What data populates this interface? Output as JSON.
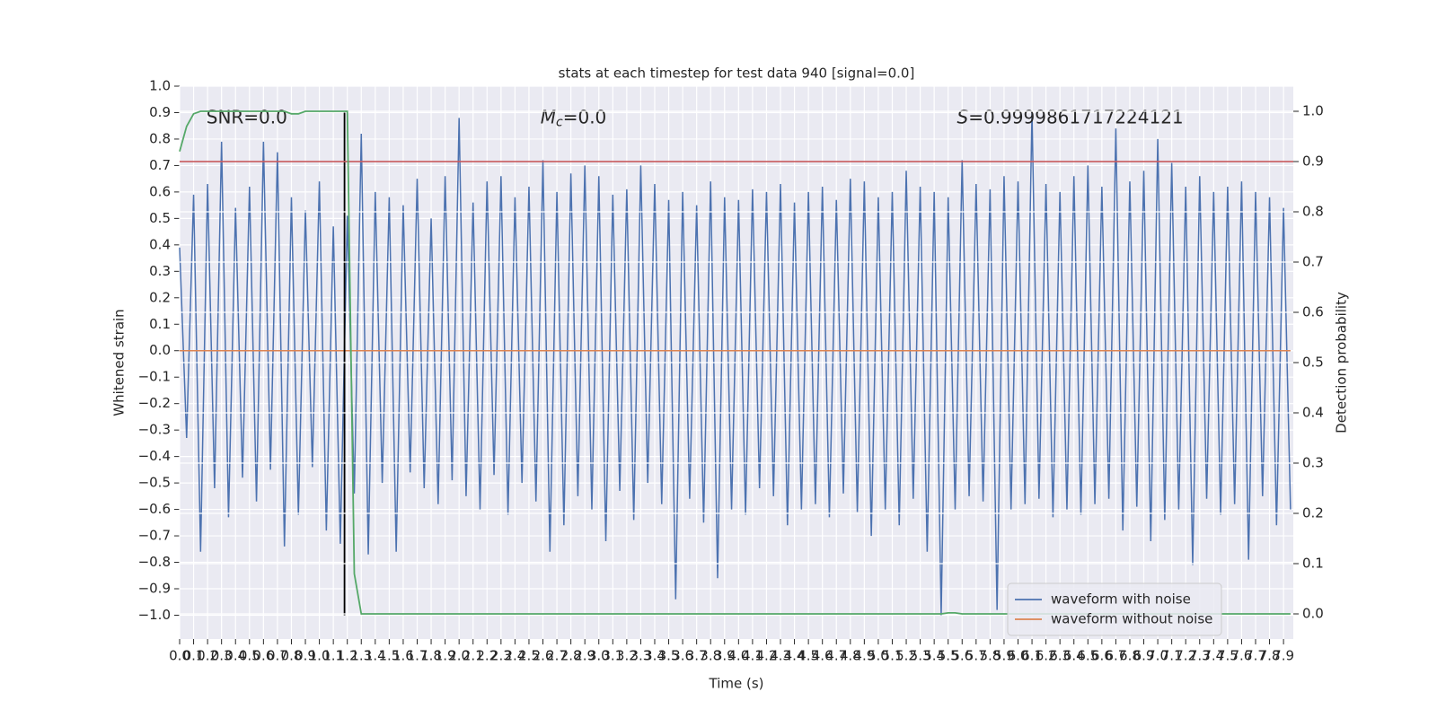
{
  "chart_data": {
    "type": "line",
    "title": "stats at each timestep for test data 940 [signal=0.0]",
    "xlabel": "Time (s)",
    "ylabel": "Whitened strain",
    "y2label": "Detection probability",
    "annotations": [
      {
        "text": "SNR=0.0"
      },
      {
        "symbol": "M",
        "subscript": "c",
        "text": "=0.0"
      },
      {
        "symbol": "S",
        "text": "=0.9999861717224121"
      }
    ],
    "grid": true,
    "legend_loc": "lower right",
    "xlim": [
      0,
      7.97
    ],
    "ylim": [
      -1.09,
      1.0
    ],
    "y2lim": [
      -0.05,
      1.05
    ],
    "xticks": [
      {
        "value": 0,
        "label": "0.0"
      },
      0.1,
      0.2,
      0.3,
      0.4,
      0.5,
      0.6,
      0.7,
      0.8,
      0.9,
      {
        "value": 1,
        "label": "1.0"
      },
      1.1,
      1.2,
      1.3,
      1.4,
      1.5,
      1.6,
      1.7,
      1.8,
      1.9,
      {
        "value": 2,
        "label": "2.0"
      },
      2.1,
      2.2,
      2.3,
      2.4,
      2.5,
      2.6,
      2.7,
      2.8,
      2.9,
      {
        "value": 3,
        "label": "3.0"
      },
      3.1,
      3.2,
      3.3,
      3.4,
      3.5,
      3.6,
      3.7,
      3.8,
      3.9,
      {
        "value": 4,
        "label": "4.0"
      },
      4.1,
      4.2,
      4.3,
      4.4,
      4.5,
      4.6,
      4.7,
      4.8,
      4.9,
      {
        "value": 5,
        "label": "5.0"
      },
      5.1,
      5.2,
      5.3,
      5.4,
      5.5,
      5.6,
      5.7,
      5.8,
      5.9,
      {
        "value": 6,
        "label": "6.0"
      },
      6.1,
      6.2,
      6.3,
      6.4,
      6.5,
      6.6,
      6.7,
      6.8,
      6.9,
      {
        "value": 7,
        "label": "7.0"
      },
      7.1,
      7.2,
      7.3,
      7.4,
      7.5,
      7.6,
      7.7,
      7.8,
      7.9
    ],
    "yticks": [
      {
        "value": 1,
        "label": "1.0"
      },
      0.9,
      0.8,
      0.7,
      0.6,
      0.5,
      0.4,
      0.3,
      0.2,
      0.1,
      {
        "value": 0,
        "label": "0.0"
      },
      {
        "value": -0.1,
        "label": "−0.1"
      },
      {
        "value": -0.2,
        "label": "−0.2"
      },
      {
        "value": -0.3,
        "label": "−0.3"
      },
      {
        "value": -0.4,
        "label": "−0.4"
      },
      {
        "value": -0.5,
        "label": "−0.5"
      },
      {
        "value": -0.6,
        "label": "−0.6"
      },
      {
        "value": -0.7,
        "label": "−0.7"
      },
      {
        "value": -0.8,
        "label": "−0.8"
      },
      {
        "value": -0.9,
        "label": "−0.9"
      },
      {
        "value": -1,
        "label": "−1.0"
      }
    ],
    "y2ticks": [
      {
        "value": 0,
        "label": "0.0"
      },
      0.1,
      0.2,
      0.3,
      0.4,
      0.5,
      0.6,
      0.7,
      0.8,
      0.9,
      {
        "value": 1,
        "label": "1.0"
      }
    ],
    "x": [
      0,
      0.05,
      0.1,
      0.15,
      0.2,
      0.25,
      0.3,
      0.35,
      0.4,
      0.45,
      0.5,
      0.55,
      0.6,
      0.65,
      0.7,
      0.75,
      0.8,
      0.85,
      0.9,
      0.95,
      1,
      1.05,
      1.1,
      1.15,
      1.2,
      1.25,
      1.3,
      1.35,
      1.4,
      1.45,
      1.5,
      1.55,
      1.6,
      1.65,
      1.7,
      1.75,
      1.8,
      1.85,
      1.9,
      1.95,
      2,
      2.05,
      2.1,
      2.15,
      2.2,
      2.25,
      2.3,
      2.35,
      2.4,
      2.45,
      2.5,
      2.55,
      2.6,
      2.65,
      2.7,
      2.75,
      2.8,
      2.85,
      2.9,
      2.95,
      3,
      3.05,
      3.1,
      3.15,
      3.2,
      3.25,
      3.3,
      3.35,
      3.4,
      3.45,
      3.5,
      3.55,
      3.6,
      3.65,
      3.7,
      3.75,
      3.8,
      3.85,
      3.9,
      3.95,
      4,
      4.05,
      4.1,
      4.15,
      4.2,
      4.25,
      4.3,
      4.35,
      4.4,
      4.45,
      4.5,
      4.55,
      4.6,
      4.65,
      4.7,
      4.75,
      4.8,
      4.85,
      4.9,
      4.95,
      5,
      5.05,
      5.1,
      5.15,
      5.2,
      5.25,
      5.3,
      5.35,
      5.4,
      5.45,
      5.5,
      5.55,
      5.6,
      5.65,
      5.7,
      5.75,
      5.8,
      5.85,
      5.9,
      5.95,
      6,
      6.05,
      6.1,
      6.15,
      6.2,
      6.25,
      6.3,
      6.35,
      6.4,
      6.45,
      6.5,
      6.55,
      6.6,
      6.65,
      6.7,
      6.75,
      6.8,
      6.85,
      6.9,
      6.95,
      7,
      7.05,
      7.1,
      7.15,
      7.2,
      7.25,
      7.3,
      7.35,
      7.4,
      7.45,
      7.5,
      7.55,
      7.6,
      7.65,
      7.7,
      7.75,
      7.8,
      7.85,
      7.9,
      7.95
    ],
    "series": [
      {
        "name": "waveform with noise",
        "color": "#4c72b0",
        "values": [
          0.39,
          -0.33,
          0.59,
          -0.76,
          0.63,
          -0.52,
          0.79,
          -0.63,
          0.54,
          -0.48,
          0.62,
          -0.57,
          0.79,
          -0.45,
          0.75,
          -0.74,
          0.58,
          -0.62,
          0.53,
          -0.44,
          0.64,
          -0.68,
          0.47,
          -0.73,
          0.51,
          -0.54,
          0.82,
          -0.77,
          0.6,
          -0.5,
          0.58,
          -0.76,
          0.55,
          -0.46,
          0.65,
          -0.52,
          0.5,
          -0.58,
          0.66,
          -0.49,
          0.88,
          -0.55,
          0.56,
          -0.6,
          0.64,
          -0.47,
          0.66,
          -0.62,
          0.58,
          -0.5,
          0.62,
          -0.57,
          0.72,
          -0.76,
          0.6,
          -0.66,
          0.67,
          -0.55,
          0.7,
          -0.6,
          0.66,
          -0.72,
          0.59,
          -0.53,
          0.61,
          -0.64,
          0.7,
          -0.5,
          0.63,
          -0.58,
          0.57,
          -0.94,
          0.6,
          -0.56,
          0.55,
          -0.65,
          0.64,
          -0.86,
          0.58,
          -0.6,
          0.57,
          -0.62,
          0.61,
          -0.52,
          0.6,
          -0.55,
          0.63,
          -0.66,
          0.56,
          -0.6,
          0.6,
          -0.58,
          0.62,
          -0.63,
          0.57,
          -0.54,
          0.65,
          -0.61,
          0.64,
          -0.7,
          0.58,
          -0.6,
          0.6,
          -0.66,
          0.68,
          -0.56,
          0.62,
          -0.76,
          0.6,
          -1.0,
          0.58,
          -0.6,
          0.72,
          -0.55,
          0.63,
          -0.57,
          0.61,
          -0.98,
          0.66,
          -0.6,
          0.64,
          -0.58,
          0.9,
          -0.56,
          0.63,
          -0.63,
          0.6,
          -0.6,
          0.66,
          -0.62,
          0.7,
          -0.58,
          0.62,
          -0.56,
          0.84,
          -0.68,
          0.64,
          -0.59,
          0.68,
          -0.72,
          0.8,
          -0.64,
          0.71,
          -0.6,
          0.62,
          -0.81,
          0.66,
          -0.56,
          0.6,
          -0.62,
          0.62,
          -0.58,
          0.64,
          -0.79,
          0.6,
          -0.55,
          0.58,
          -0.66,
          0.54,
          -0.6
        ]
      },
      {
        "name": "waveform without noise",
        "color": "#dd8452",
        "values": [
          0,
          0,
          0,
          0,
          0,
          0,
          0,
          0,
          0,
          0,
          0,
          0,
          0,
          0,
          0,
          0,
          0,
          0,
          0,
          0,
          0,
          0,
          0,
          0,
          0,
          0,
          0,
          0,
          0,
          0,
          0,
          0,
          0,
          0,
          0,
          0,
          0,
          0,
          0,
          0,
          0,
          0,
          0,
          0,
          0,
          0,
          0,
          0,
          0,
          0,
          0,
          0,
          0,
          0,
          0,
          0,
          0,
          0,
          0,
          0,
          0,
          0,
          0,
          0,
          0,
          0,
          0,
          0,
          0,
          0,
          0,
          0,
          0,
          0,
          0,
          0,
          0,
          0,
          0,
          0,
          0,
          0,
          0,
          0,
          0,
          0,
          0,
          0,
          0,
          0,
          0,
          0,
          0,
          0,
          0,
          0,
          0,
          0,
          0,
          0,
          0,
          0,
          0,
          0,
          0,
          0,
          0,
          0,
          0,
          0,
          0,
          0,
          0,
          0,
          0,
          0,
          0,
          0,
          0,
          0,
          0,
          0,
          0,
          0,
          0,
          0,
          0,
          0,
          0,
          0,
          0,
          0,
          0,
          0,
          0,
          0,
          0,
          0,
          0,
          0,
          0,
          0,
          0,
          0,
          0,
          0,
          0,
          0,
          0,
          0,
          0,
          0,
          0,
          0,
          0,
          0,
          0,
          0,
          0,
          0
        ]
      },
      {
        "color": "#55a868",
        "axis": "y2",
        "values": [
          0.92,
          0.97,
          0.995,
          1,
          1,
          1,
          1,
          1,
          1,
          1,
          1,
          1,
          1,
          1,
          1,
          1,
          0.995,
          0.995,
          1,
          1,
          1,
          1,
          1,
          1,
          1,
          0.08,
          0,
          0,
          0,
          0,
          0,
          0,
          0,
          0,
          0,
          0,
          0,
          0,
          0,
          0,
          0,
          0,
          0,
          0,
          0,
          0,
          0,
          0,
          0,
          0,
          0,
          0,
          0,
          0,
          0,
          0,
          0,
          0,
          0,
          0,
          0,
          0,
          0,
          0,
          0,
          0,
          0,
          0,
          0,
          0,
          0,
          0,
          0,
          0,
          0,
          0,
          0,
          0,
          0,
          0,
          0,
          0,
          0,
          0,
          0,
          0,
          0,
          0,
          0,
          0,
          0,
          0,
          0,
          0,
          0,
          0,
          0,
          0,
          0,
          0,
          0,
          0,
          0,
          0,
          0,
          0,
          0,
          0,
          0,
          0,
          0.002,
          0.002,
          0,
          0,
          0,
          0,
          0,
          0,
          0,
          0,
          0,
          0,
          0,
          0,
          0,
          0,
          0,
          0,
          0,
          0,
          0,
          0,
          0,
          0,
          0,
          0,
          0,
          0,
          0,
          0,
          0,
          0,
          0,
          0,
          0,
          0,
          0,
          0,
          0,
          0,
          0,
          0,
          0,
          0,
          0,
          0,
          0,
          0,
          0,
          0
        ]
      }
    ],
    "hlines": [
      {
        "value": 0.9,
        "axis": "y2",
        "color": "#c44e52"
      }
    ],
    "vlines": [
      {
        "x": 1.18,
        "ymin": -1.0,
        "ymax": 0.9,
        "color": "#000000"
      }
    ]
  }
}
